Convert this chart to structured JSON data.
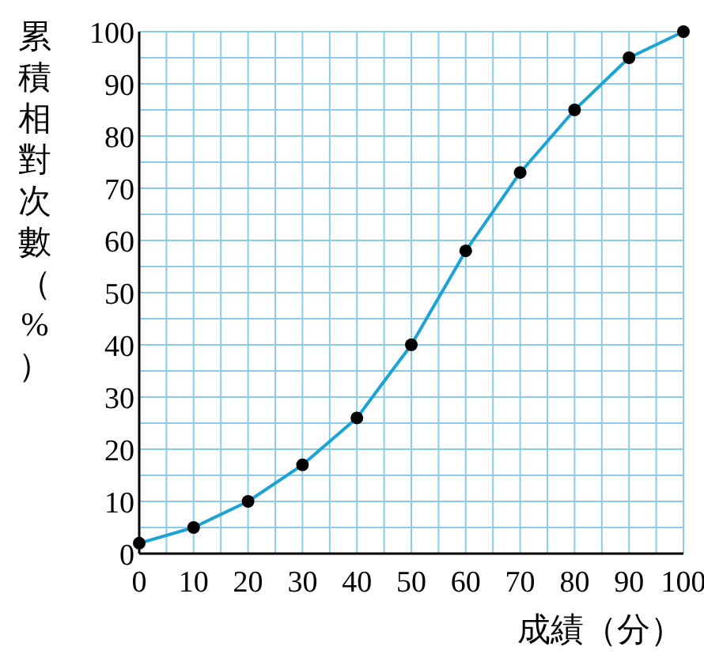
{
  "chart_data": {
    "type": "line",
    "xlabel": "成績（分）",
    "ylabel": "累積相對次數（%）",
    "x": [
      0,
      10,
      20,
      30,
      40,
      50,
      60,
      70,
      80,
      90,
      100
    ],
    "series": [
      {
        "color": "#1ba3d6",
        "values": [
          2,
          5,
          10,
          17,
          26,
          40,
          58,
          73,
          85,
          95,
          100
        ]
      }
    ],
    "xlim": [
      0,
      100
    ],
    "ylim": [
      0,
      100
    ],
    "xticks": [
      0,
      {
        "value": 5,
        "label": null
      },
      10,
      {
        "value": 15,
        "label": null
      },
      20,
      {
        "value": 25,
        "label": null
      },
      30,
      {
        "value": 35,
        "label": null
      },
      40,
      {
        "value": 45,
        "label": null
      },
      50,
      {
        "value": 55,
        "label": null
      },
      60,
      {
        "value": 65,
        "label": null
      },
      70,
      {
        "value": 75,
        "label": null
      },
      80,
      {
        "value": 85,
        "label": null
      },
      90,
      {
        "value": 95,
        "label": null
      },
      100
    ],
    "yticks": [
      0,
      {
        "value": 5,
        "label": null
      },
      10,
      {
        "value": 15,
        "label": null
      },
      20,
      {
        "value": 25,
        "label": null
      },
      30,
      {
        "value": 35,
        "label": null
      },
      40,
      {
        "value": 45,
        "label": null
      },
      50,
      {
        "value": 55,
        "label": null
      },
      60,
      {
        "value": 65,
        "label": null
      },
      70,
      {
        "value": 75,
        "label": null
      },
      80,
      {
        "value": 85,
        "label": null
      },
      90,
      {
        "value": 95,
        "label": null
      },
      100
    ],
    "grid": true,
    "marker": "circle",
    "line_style": "solid"
  }
}
